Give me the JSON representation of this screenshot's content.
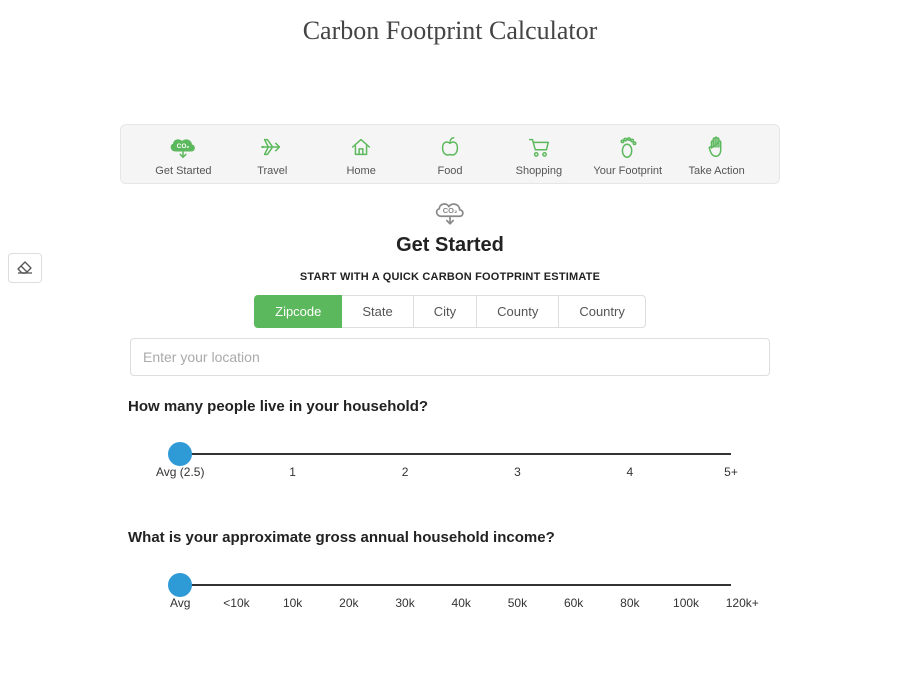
{
  "page": {
    "title": "Carbon Footprint Calculator",
    "background_color": "#ffffff"
  },
  "colors": {
    "accent_green": "#5cb85c",
    "icon_green_stroke": "#5cb85c",
    "icon_outline": "#888888",
    "nav_bar_bg": "#f5f5f5",
    "nav_bar_border": "#e6e6e6",
    "slider_knob": "#2f9bd6",
    "tab_border": "#dddddd",
    "track_color": "#333333"
  },
  "nav": {
    "items": [
      {
        "label": "Get Started",
        "icon": "co2-cloud",
        "active": true
      },
      {
        "label": "Travel",
        "icon": "plane",
        "active": false
      },
      {
        "label": "Home",
        "icon": "house",
        "active": false
      },
      {
        "label": "Food",
        "icon": "apple",
        "active": false
      },
      {
        "label": "Shopping",
        "icon": "cart",
        "active": false
      },
      {
        "label": "Your Footprint",
        "icon": "footprint",
        "active": false
      },
      {
        "label": "Take Action",
        "icon": "hand",
        "active": false
      }
    ]
  },
  "section": {
    "icon": "co2-cloud",
    "title": "Get Started",
    "subtitle": "START WITH A QUICK CARBON FOOTPRINT ESTIMATE"
  },
  "location": {
    "tabs": [
      "Zipcode",
      "State",
      "City",
      "County",
      "Country"
    ],
    "active_index": 0,
    "placeholder": "Enter your location",
    "value": ""
  },
  "sliders": {
    "household": {
      "question": "How many people live in your household?",
      "ticks": [
        "Avg (2.5)",
        "1",
        "2",
        "3",
        "4",
        "5+"
      ],
      "tick_positions_pct": [
        2,
        22,
        42,
        62,
        82,
        100
      ],
      "value_pct": 2
    },
    "income": {
      "question": "What is your approximate gross annual household income?",
      "ticks": [
        "Avg",
        "<10k",
        "10k",
        "20k",
        "30k",
        "40k",
        "50k",
        "60k",
        "80k",
        "100k",
        "120k+"
      ],
      "tick_positions_pct": [
        2,
        12,
        22,
        32,
        42,
        52,
        62,
        72,
        82,
        92,
        102
      ],
      "value_pct": 2
    }
  },
  "side_button": {
    "icon": "eraser"
  }
}
